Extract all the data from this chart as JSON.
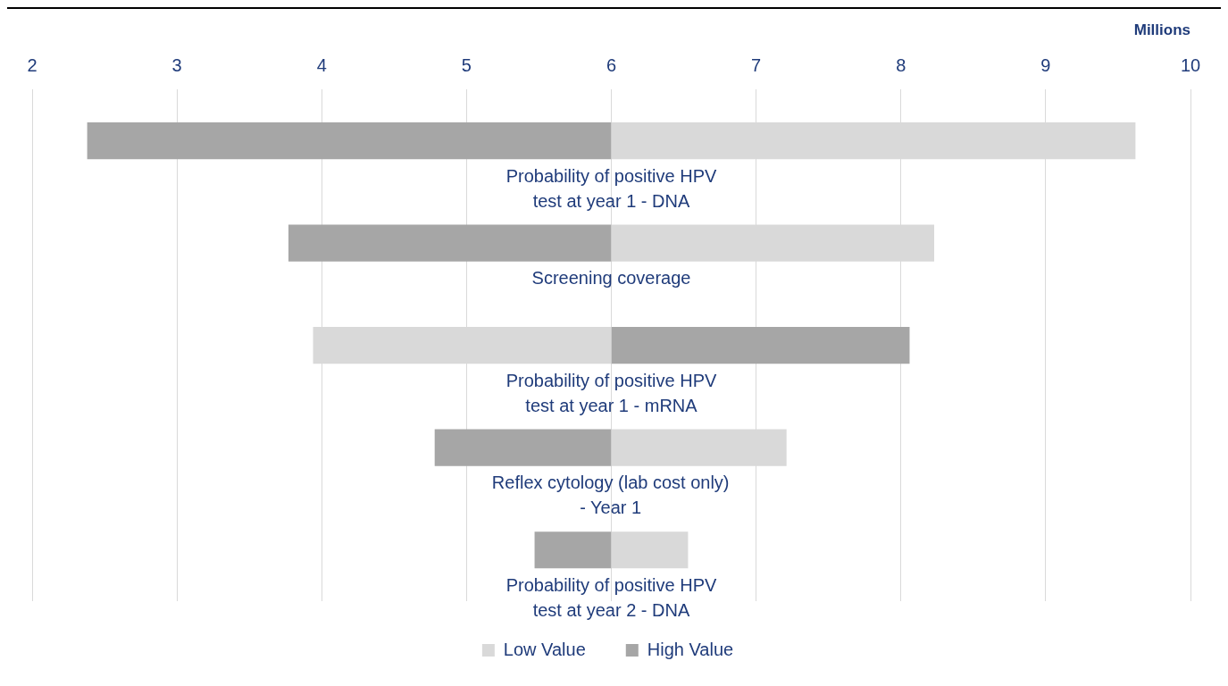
{
  "chart_data": {
    "type": "bar",
    "orientation": "horizontal",
    "stacked": false,
    "categories": [
      "Probability of positive HPV test at year 1 - DNA",
      "Screening coverage",
      "Probability of positive HPV test at year 1 - mRNA",
      "Reflex cytology (lab cost only) - Year 1",
      "Probability of positive HPV test at year 2 - DNA"
    ],
    "series": [
      {
        "name": "Low Value",
        "color": "#d9d9d9",
        "base": [
          6,
          6,
          3.94,
          6,
          6
        ],
        "values": [
          3.62,
          2.23,
          2.06,
          1.21,
          0.53
        ]
      },
      {
        "name": "High Value",
        "color": "#a6a6a6",
        "base": [
          2.38,
          3.77,
          6,
          4.78,
          5.47
        ],
        "values": [
          3.62,
          2.23,
          2.06,
          1.22,
          0.53
        ]
      }
    ],
    "xlabel": "Millions",
    "xlim": [
      2,
      10
    ],
    "xticks": [
      2,
      3,
      4,
      5,
      6,
      7,
      8,
      9,
      10
    ],
    "grid": "x",
    "legend": "bottom"
  }
}
